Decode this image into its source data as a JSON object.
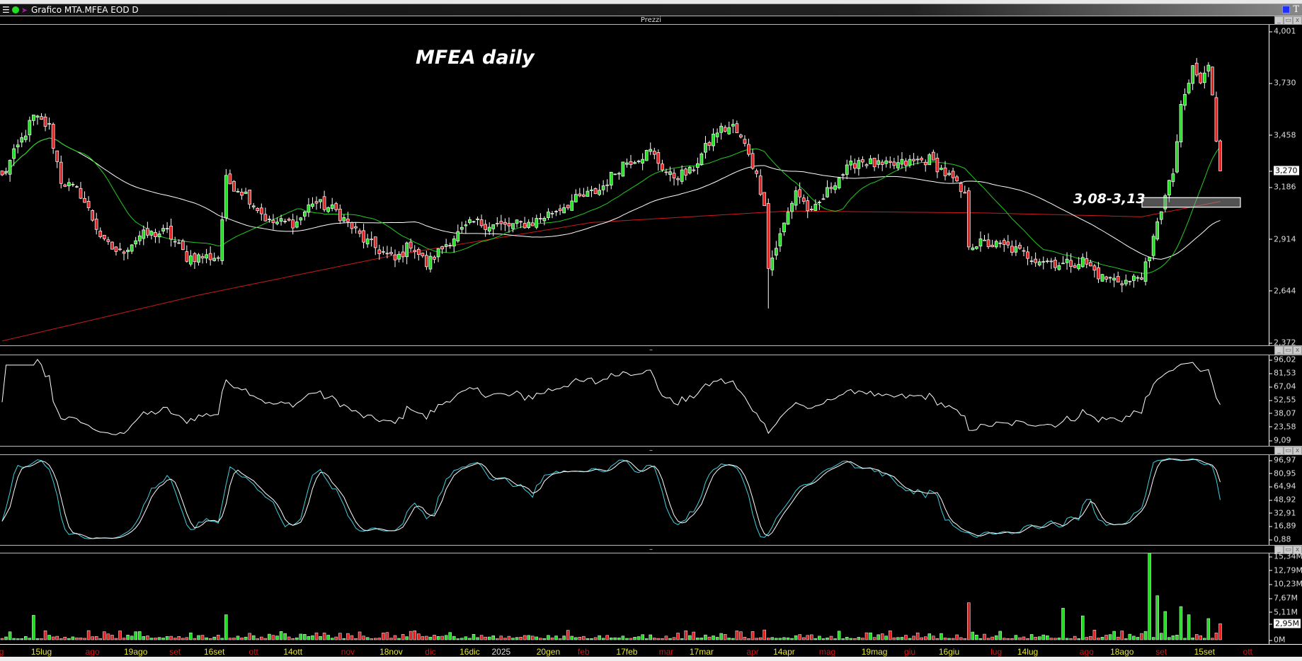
{
  "window": {
    "title": "Grafico MTA.MFEA EOD D",
    "right_icon_label": "T"
  },
  "panels": {
    "price_title": "Prezzi",
    "separator_label": "–"
  },
  "annotations": {
    "title": "MFEA daily",
    "range_label": "3,08-3,13",
    "range": [
      3.08,
      3.13
    ]
  },
  "colors": {
    "up": "#22dd22",
    "down": "#dd2222",
    "ma_short": "#22cc22",
    "ma_mid": "#ffffff",
    "ma_long": "#cc1a1a",
    "rsi": "#ffffff",
    "stoch_k": "#ffffff",
    "stoch_d": "#40d0e0"
  },
  "chart_data": {
    "type": "candlestick",
    "symbol": "MTA.MFEA",
    "timeframe": "daily",
    "n_days": 311,
    "close_anchors": [
      [
        0,
        3.24
      ],
      [
        8,
        3.55
      ],
      [
        12,
        3.5
      ],
      [
        15,
        3.22
      ],
      [
        20,
        3.15
      ],
      [
        26,
        2.89
      ],
      [
        30,
        2.84
      ],
      [
        35,
        2.93
      ],
      [
        42,
        2.95
      ],
      [
        47,
        2.82
      ],
      [
        55,
        2.82
      ],
      [
        57,
        3.22
      ],
      [
        62,
        3.15
      ],
      [
        68,
        3.0
      ],
      [
        75,
        3.0
      ],
      [
        79,
        3.11
      ],
      [
        85,
        3.06
      ],
      [
        92,
        2.91
      ],
      [
        100,
        2.8
      ],
      [
        104,
        2.89
      ],
      [
        108,
        2.78
      ],
      [
        114,
        2.91
      ],
      [
        120,
        3.0
      ],
      [
        128,
        2.98
      ],
      [
        135,
        3.0
      ],
      [
        145,
        3.11
      ],
      [
        152,
        3.17
      ],
      [
        158,
        3.31
      ],
      [
        165,
        3.37
      ],
      [
        170,
        3.24
      ],
      [
        175,
        3.26
      ],
      [
        182,
        3.48
      ],
      [
        186,
        3.5
      ],
      [
        190,
        3.37
      ],
      [
        194,
        3.11
      ],
      [
        195,
        2.76
      ],
      [
        198,
        2.93
      ],
      [
        202,
        3.17
      ],
      [
        206,
        3.04
      ],
      [
        212,
        3.22
      ],
      [
        218,
        3.33
      ],
      [
        224,
        3.29
      ],
      [
        230,
        3.31
      ],
      [
        236,
        3.33
      ],
      [
        242,
        3.22
      ],
      [
        245,
        3.13
      ],
      [
        246,
        2.89
      ],
      [
        250,
        2.89
      ],
      [
        256,
        2.87
      ],
      [
        262,
        2.82
      ],
      [
        270,
        2.78
      ],
      [
        275,
        2.8
      ],
      [
        280,
        2.71
      ],
      [
        287,
        2.69
      ],
      [
        290,
        2.73
      ],
      [
        292,
        2.8
      ],
      [
        294,
        3.02
      ],
      [
        296,
        3.13
      ],
      [
        298,
        3.26
      ],
      [
        300,
        3.59
      ],
      [
        302,
        3.73
      ],
      [
        303,
        3.81
      ],
      [
        305,
        3.73
      ],
      [
        307,
        3.81
      ],
      [
        308,
        3.68
      ],
      [
        309,
        3.44
      ],
      [
        310,
        3.27
      ]
    ],
    "ma_long_anchors": [
      [
        0,
        2.38
      ],
      [
        50,
        2.62
      ],
      [
        100,
        2.83
      ],
      [
        150,
        3.0
      ],
      [
        200,
        3.06
      ],
      [
        250,
        3.05
      ],
      [
        290,
        3.03
      ],
      [
        310,
        3.11
      ]
    ],
    "last_close": "3,270",
    "price_axis": {
      "min": 2.372,
      "max": 4.001,
      "ticks": [
        "4,001",
        "3,730",
        "3,458",
        "3,186",
        "2,914",
        "2,644",
        "2,372"
      ]
    },
    "rsi_axis": {
      "min": 9.09,
      "max": 96.02,
      "ticks": [
        "96,02",
        "81,53",
        "67,04",
        "52,55",
        "38,07",
        "23,58",
        "9,09"
      ]
    },
    "stoch_axis": {
      "min": 0.88,
      "max": 96.97,
      "ticks": [
        "96,97",
        "80,95",
        "64,94",
        "48,92",
        "32,91",
        "16,89",
        "0,88"
      ]
    },
    "volume_axis": {
      "min": 0,
      "max": 15.34,
      "ticks": [
        "15,34M",
        "12,79M",
        "10,23M",
        "7,67M",
        "5,11M",
        "0M"
      ],
      "last": "2,95M",
      "last_value": 2.95
    },
    "volume_spikes": [
      [
        8,
        4.5
      ],
      [
        57,
        4.6
      ],
      [
        246,
        6.8
      ],
      [
        270,
        5.8
      ],
      [
        275,
        4.4
      ],
      [
        292,
        16.4
      ],
      [
        294,
        8.1
      ],
      [
        296,
        5.2
      ],
      [
        300,
        6.1
      ],
      [
        302,
        4.6
      ],
      [
        307,
        3.9
      ],
      [
        310,
        2.95
      ]
    ],
    "x_labels": [
      {
        "i": -1,
        "t": "lug",
        "m": 1
      },
      {
        "i": 10,
        "t": "15lug",
        "m": 0
      },
      {
        "i": 23,
        "t": "ago",
        "m": 1
      },
      {
        "i": 34,
        "t": "19ago",
        "m": 0
      },
      {
        "i": 44,
        "t": "set",
        "m": 1
      },
      {
        "i": 54,
        "t": "16set",
        "m": 0
      },
      {
        "i": 64,
        "t": "ott",
        "m": 1
      },
      {
        "i": 74,
        "t": "14ott",
        "m": 0
      },
      {
        "i": 88,
        "t": "nov",
        "m": 1
      },
      {
        "i": 99,
        "t": "18nov",
        "m": 0
      },
      {
        "i": 109,
        "t": "dic",
        "m": 1
      },
      {
        "i": 119,
        "t": "16dic",
        "m": 0
      },
      {
        "i": 127,
        "t": "2025",
        "m": 2
      },
      {
        "i": 139,
        "t": "20gen",
        "m": 0
      },
      {
        "i": 148,
        "t": "feb",
        "m": 1
      },
      {
        "i": 159,
        "t": "17feb",
        "m": 0
      },
      {
        "i": 169,
        "t": "mar",
        "m": 1
      },
      {
        "i": 178,
        "t": "17mar",
        "m": 0
      },
      {
        "i": 191,
        "t": "apr",
        "m": 1
      },
      {
        "i": 199,
        "t": "14apr",
        "m": 0
      },
      {
        "i": 210,
        "t": "mag",
        "m": 1
      },
      {
        "i": 222,
        "t": "19mag",
        "m": 0
      },
      {
        "i": 231,
        "t": "giu",
        "m": 1
      },
      {
        "i": 241,
        "t": "16giu",
        "m": 0
      },
      {
        "i": 253,
        "t": "lug",
        "m": 1
      },
      {
        "i": 261,
        "t": "14lug",
        "m": 0
      },
      {
        "i": 276,
        "t": "ago",
        "m": 1
      },
      {
        "i": 285,
        "t": "18ago",
        "m": 0
      },
      {
        "i": 295,
        "t": "set",
        "m": 1
      },
      {
        "i": 306,
        "t": "15set",
        "m": 0
      },
      {
        "i": 317,
        "t": "ott",
        "m": 1
      }
    ]
  }
}
